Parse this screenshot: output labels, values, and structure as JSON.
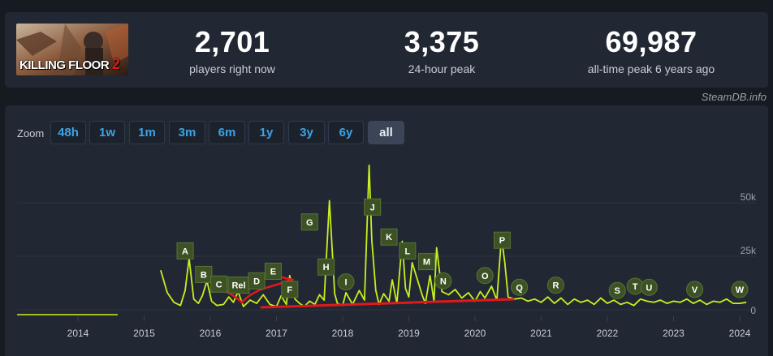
{
  "game": {
    "logo_text": "KILLING FLOOR",
    "logo_number": "2"
  },
  "stats": [
    {
      "value": "2,701",
      "label": "players right now"
    },
    {
      "value": "3,375",
      "label": "24-hour peak"
    },
    {
      "value": "69,987",
      "label": "all-time peak 6 years ago"
    }
  ],
  "credit": "SteamDB.info",
  "zoom": {
    "label": "Zoom",
    "options": [
      "48h",
      "1w",
      "1m",
      "3m",
      "6m",
      "1y",
      "3y",
      "6y",
      "all"
    ],
    "active": "all"
  },
  "colors": {
    "line": "#c8f01e",
    "flag": "#3d5224",
    "annotation": "#e01a1a",
    "button_text": "#3ca3e6"
  },
  "chart_data": {
    "type": "line",
    "x_ticks": [
      "2014",
      "2015",
      "2016",
      "2017",
      "2018",
      "2019",
      "2020",
      "2021",
      "2022",
      "2023",
      "2024"
    ],
    "y_ticks": [
      "0",
      "25k",
      "50k"
    ],
    "ylim": [
      0,
      70000
    ],
    "series": [
      {
        "x": [
          2015.25,
          2015.35,
          2015.45,
          2015.55,
          2015.62,
          2015.68,
          2015.75,
          2015.82,
          2015.88,
          2015.95,
          2016.02,
          2016.1,
          2016.2,
          2016.28,
          2016.35,
          2016.42,
          2016.5,
          2016.6,
          2016.7,
          2016.8,
          2016.9,
          2017.0,
          2017.07,
          2017.15,
          2017.2,
          2017.28,
          2017.35,
          2017.42,
          2017.5,
          2017.58,
          2017.65,
          2017.72,
          2017.8,
          2017.88,
          2017.92,
          2018.0,
          2018.05,
          2018.15,
          2018.25,
          2018.33,
          2018.4,
          2018.44,
          2018.5,
          2018.55,
          2018.62,
          2018.7,
          2018.75,
          2018.82,
          2018.9,
          2018.95,
          2019.0,
          2019.05,
          2019.12,
          2019.2,
          2019.25,
          2019.32,
          2019.38,
          2019.42,
          2019.5,
          2019.6,
          2019.7,
          2019.8,
          2019.9,
          2020.0,
          2020.08,
          2020.15,
          2020.25,
          2020.33,
          2020.4,
          2020.45,
          2020.5,
          2020.6,
          2020.7,
          2020.8,
          2020.9,
          2021.0,
          2021.1,
          2021.2,
          2021.3,
          2021.4,
          2021.5,
          2021.6,
          2021.7,
          2021.8,
          2021.9,
          2022.0,
          2022.1,
          2022.2,
          2022.3,
          2022.4,
          2022.5,
          2022.6,
          2022.7,
          2022.8,
          2022.9,
          2023.0,
          2023.1,
          2023.2,
          2023.3,
          2023.4,
          2023.5,
          2023.6,
          2023.7,
          2023.8,
          2023.9,
          2024.0,
          2024.1
        ],
        "values": [
          18500,
          8000,
          3500,
          2000,
          9000,
          24000,
          5000,
          3000,
          6500,
          13500,
          4000,
          2000,
          2500,
          6000,
          3500,
          8500,
          1500,
          4500,
          3000,
          7000,
          2500,
          1500,
          6500,
          2500,
          16000,
          5000,
          3000,
          1500,
          4000,
          2500,
          7000,
          4500,
          51000,
          7500,
          3000,
          2000,
          8000,
          2500,
          9000,
          4500,
          67500,
          32500,
          9000,
          2500,
          7500,
          4000,
          14000,
          3000,
          32000,
          10000,
          6000,
          22000,
          15000,
          7000,
          3000,
          16000,
          4000,
          29000,
          8500,
          7000,
          9500,
          5500,
          8000,
          4000,
          8500,
          5500,
          11000,
          4500,
          34000,
          22000,
          6000,
          5000,
          5500,
          4000,
          5000,
          3500,
          6000,
          3000,
          5500,
          2500,
          5000,
          3500,
          4500,
          2500,
          5500,
          3000,
          4500,
          2500,
          3500,
          2000,
          5000,
          4000,
          3500,
          4500,
          3000,
          4000,
          3500,
          5000,
          3000,
          4500,
          2500,
          4000,
          3500,
          5000,
          3000,
          3000,
          3500
        ]
      }
    ],
    "flat_segment": {
      "x": [
        2013.0,
        2014.6
      ],
      "value": 0
    },
    "flags": [
      {
        "label": "A",
        "x": 2015.62,
        "level": 27500
      },
      {
        "label": "B",
        "x": 2015.9,
        "level": 16500
      },
      {
        "label": "C",
        "x": 2016.13,
        "level": 12000
      },
      {
        "label": "Rel",
        "x": 2016.43,
        "level": 11500
      },
      {
        "label": "D",
        "x": 2016.7,
        "level": 13500
      },
      {
        "label": "E",
        "x": 2016.95,
        "level": 18000
      },
      {
        "label": "F",
        "x": 2017.2,
        "level": 9500
      },
      {
        "label": "G",
        "x": 2017.5,
        "level": 41000
      },
      {
        "label": "H",
        "x": 2017.75,
        "level": 20000
      },
      {
        "label": "I",
        "x": 2018.05,
        "level": 13000
      },
      {
        "label": "J",
        "x": 2018.45,
        "level": 48000
      },
      {
        "label": "K",
        "x": 2018.7,
        "level": 34000
      },
      {
        "label": "L",
        "x": 2018.98,
        "level": 27500
      },
      {
        "label": "M",
        "x": 2019.27,
        "level": 22500
      },
      {
        "label": "N",
        "x": 2019.52,
        "level": 13500
      },
      {
        "label": "O",
        "x": 2020.15,
        "level": 16000
      },
      {
        "label": "P",
        "x": 2020.41,
        "level": 32500
      },
      {
        "label": "Q",
        "x": 2020.67,
        "level": 10500
      },
      {
        "label": "R",
        "x": 2021.22,
        "level": 11500
      },
      {
        "label": "S",
        "x": 2022.15,
        "level": 9000
      },
      {
        "label": "T",
        "x": 2022.42,
        "level": 11000
      },
      {
        "label": "U",
        "x": 2022.63,
        "level": 10500
      },
      {
        "label": "V",
        "x": 2023.32,
        "level": 9500
      },
      {
        "label": "W",
        "x": 2024.0,
        "level": 9500
      }
    ]
  }
}
